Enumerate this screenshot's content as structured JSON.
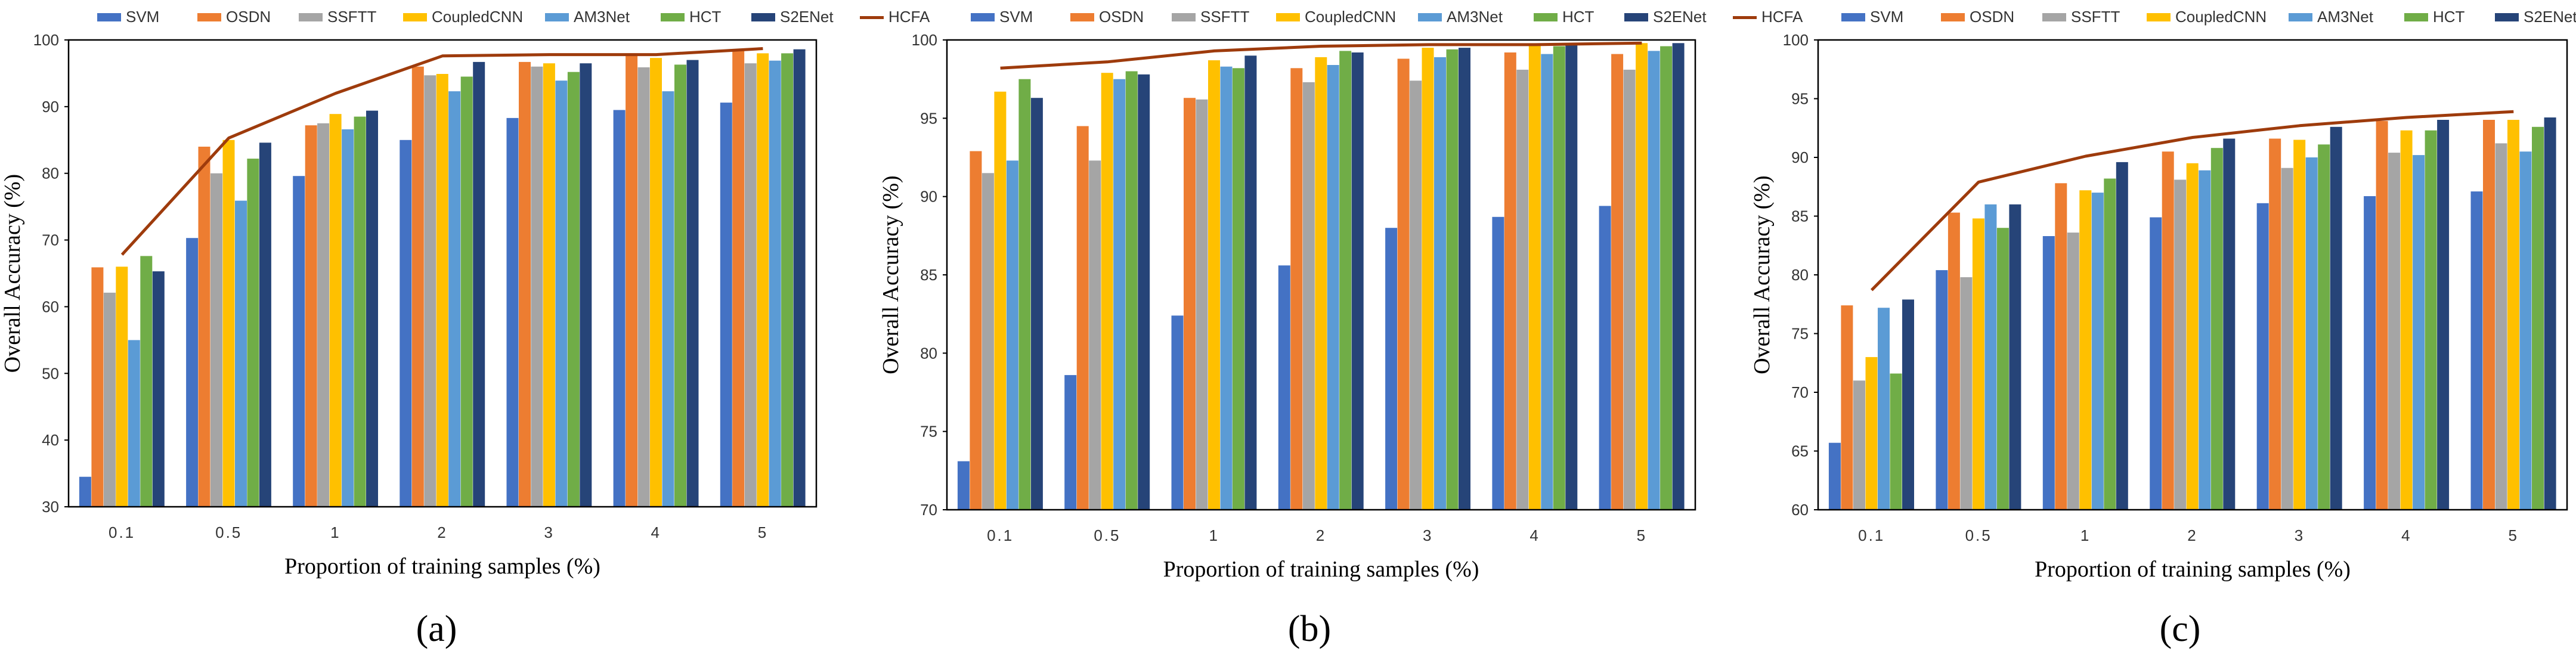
{
  "colors": {
    "SVM": "#4472C4",
    "OSDN": "#ED7D31",
    "SSFTT": "#A5A5A5",
    "CoupledCNN": "#FFC000",
    "AM3Net": "#5B9BD5",
    "HCT": "#70AD47",
    "S2ENet": "#264478",
    "HCFA": "#9E3B0C"
  },
  "chart_data": [
    {
      "type": "bar",
      "panel_label": "(a)",
      "categories": [
        "0.1",
        "0.5",
        "1",
        "2",
        "3",
        "4",
        "5"
      ],
      "xlabel": "Proportion of training samples (%)",
      "ylabel": "Overall Accuracy (%)",
      "ylim": [
        30,
        100
      ],
      "yticks": [
        "30",
        "40",
        "50",
        "60",
        "70",
        "80",
        "90",
        "100"
      ],
      "grid": false,
      "legend": "top",
      "series": [
        {
          "name": "SVM",
          "values": [
            34.5,
            70.3,
            79.6,
            85.0,
            88.3,
            89.5,
            90.6
          ]
        },
        {
          "name": "OSDN",
          "values": [
            65.9,
            84.0,
            87.2,
            96.0,
            96.7,
            98.0,
            98.5
          ]
        },
        {
          "name": "SSFTT",
          "values": [
            62.1,
            80.0,
            87.5,
            94.7,
            96.0,
            95.9,
            96.5
          ]
        },
        {
          "name": "CoupledCNN",
          "values": [
            66.0,
            85.0,
            88.9,
            94.9,
            96.5,
            97.3,
            98.0
          ]
        },
        {
          "name": "AM3Net",
          "values": [
            55.0,
            75.9,
            86.6,
            92.3,
            93.9,
            92.3,
            96.9
          ]
        },
        {
          "name": "HCT",
          "values": [
            67.6,
            82.2,
            88.5,
            94.5,
            95.2,
            96.3,
            98.0
          ]
        },
        {
          "name": "S2ENet",
          "values": [
            65.3,
            84.6,
            89.4,
            96.7,
            96.5,
            97.0,
            98.6
          ]
        }
      ],
      "line_series": {
        "name": "HCFA",
        "values": [
          67.8,
          85.3,
          92.0,
          97.6,
          97.8,
          97.8,
          98.7
        ]
      }
    },
    {
      "type": "bar",
      "panel_label": "(b)",
      "categories": [
        "0.1",
        "0.5",
        "1",
        "2",
        "3",
        "4",
        "5"
      ],
      "xlabel": "Proportion of training samples (%)",
      "ylabel": "Overall Accuracy (%)",
      "ylim": [
        70,
        100
      ],
      "yticks": [
        "70",
        "75",
        "80",
        "85",
        "90",
        "95",
        "100"
      ],
      "grid": false,
      "legend": "top",
      "series": [
        {
          "name": "SVM",
          "values": [
            73.1,
            78.6,
            82.4,
            85.6,
            88.0,
            88.7,
            89.4
          ]
        },
        {
          "name": "OSDN",
          "values": [
            92.9,
            94.5,
            96.3,
            98.2,
            98.8,
            99.2,
            99.1
          ]
        },
        {
          "name": "SSFTT",
          "values": [
            91.5,
            92.3,
            96.2,
            97.3,
            97.4,
            98.1,
            98.1
          ]
        },
        {
          "name": "CoupledCNN",
          "values": [
            96.7,
            97.9,
            98.7,
            98.9,
            99.5,
            99.7,
            99.8
          ]
        },
        {
          "name": "AM3Net",
          "values": [
            92.3,
            97.5,
            98.3,
            98.4,
            98.9,
            99.1,
            99.3
          ]
        },
        {
          "name": "HCT",
          "values": [
            97.5,
            98.0,
            98.2,
            99.3,
            99.4,
            99.6,
            99.6
          ]
        },
        {
          "name": "S2ENet",
          "values": [
            96.3,
            97.8,
            99.0,
            99.2,
            99.5,
            99.8,
            99.8
          ]
        }
      ],
      "line_series": {
        "name": "HCFA",
        "values": [
          98.2,
          98.6,
          99.3,
          99.6,
          99.7,
          99.7,
          99.8
        ]
      }
    },
    {
      "type": "bar",
      "panel_label": "(c)",
      "categories": [
        "0.1",
        "0.5",
        "1",
        "2",
        "3",
        "4",
        "5"
      ],
      "xlabel": "Proportion of training samples (%)",
      "ylabel": "Overall Accuracy (%)",
      "ylim": [
        60,
        100
      ],
      "yticks": [
        "60",
        "65",
        "70",
        "75",
        "80",
        "85",
        "90",
        "95",
        "100"
      ],
      "grid": false,
      "legend": "top",
      "series": [
        {
          "name": "SVM",
          "values": [
            65.7,
            80.4,
            83.3,
            84.9,
            86.1,
            86.7,
            87.1
          ]
        },
        {
          "name": "OSDN",
          "values": [
            77.4,
            85.3,
            87.8,
            90.5,
            91.6,
            93.1,
            93.2
          ]
        },
        {
          "name": "SSFTT",
          "values": [
            71.0,
            79.8,
            83.6,
            88.1,
            89.1,
            90.4,
            91.2
          ]
        },
        {
          "name": "CoupledCNN",
          "values": [
            73.0,
            84.8,
            87.2,
            89.5,
            91.5,
            92.3,
            93.2
          ]
        },
        {
          "name": "AM3Net",
          "values": [
            77.2,
            86.0,
            87.0,
            88.9,
            90.0,
            90.2,
            90.5
          ]
        },
        {
          "name": "HCT",
          "values": [
            71.6,
            84.0,
            88.2,
            90.8,
            91.1,
            92.3,
            92.6
          ]
        },
        {
          "name": "S2ENet",
          "values": [
            77.9,
            86.0,
            89.6,
            91.6,
            92.6,
            93.2,
            93.4
          ]
        }
      ],
      "line_series": {
        "name": "HCFA",
        "values": [
          78.7,
          87.9,
          90.1,
          91.7,
          92.7,
          93.4,
          93.9
        ]
      }
    }
  ]
}
